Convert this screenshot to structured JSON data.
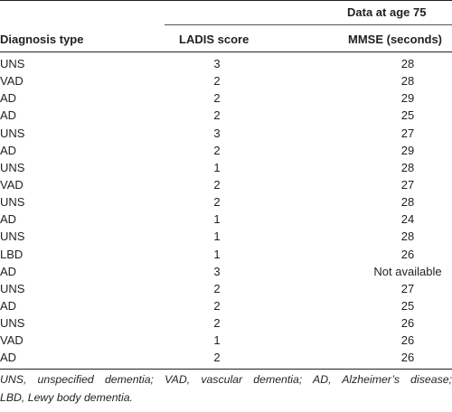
{
  "table": {
    "group_header": "Data at age 75",
    "columns": [
      "Diagnosis type",
      "LADIS score",
      "MMSE (seconds)"
    ],
    "rows": [
      [
        "UNS",
        "3",
        "28"
      ],
      [
        "VAD",
        "2",
        "28"
      ],
      [
        "AD",
        "2",
        "29"
      ],
      [
        "AD",
        "2",
        "25"
      ],
      [
        "UNS",
        "3",
        "27"
      ],
      [
        "AD",
        "2",
        "29"
      ],
      [
        "UNS",
        "1",
        "28"
      ],
      [
        "VAD",
        "2",
        "27"
      ],
      [
        "UNS",
        "2",
        "28"
      ],
      [
        "AD",
        "1",
        "24"
      ],
      [
        "UNS",
        "1",
        "28"
      ],
      [
        "LBD",
        "1",
        "26"
      ],
      [
        "AD",
        "3",
        "Not available"
      ],
      [
        "UNS",
        "2",
        "27"
      ],
      [
        "AD",
        "2",
        "25"
      ],
      [
        "UNS",
        "2",
        "26"
      ],
      [
        "VAD",
        "1",
        "26"
      ],
      [
        "AD",
        "2",
        "26"
      ]
    ]
  },
  "footnote": {
    "line1": "UNS, unspecified dementia; VAD, vascular dementia; AD, Alzheimer’s disease;",
    "line2": "LBD, Lewy body dementia."
  }
}
